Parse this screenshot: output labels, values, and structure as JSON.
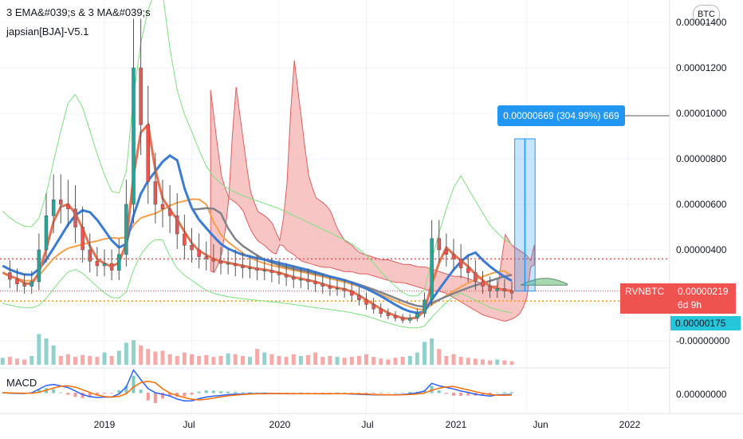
{
  "legend": {
    "line1": "3 EMA&#039;s & 3 MA&#039;s",
    "line2": "japsian[BJA]-V5.1",
    "macd": "MACD"
  },
  "currency_button": "BTC",
  "measure_label": "0.00000669 (304.99%) 669",
  "price_tag": {
    "symbol": "RVNBTC",
    "price": "0.00000219",
    "countdown": "6d 9h"
  },
  "level_tag": "0.00000175",
  "colors": {
    "candle_up": "#26a69a",
    "candle_down": "#ef5350",
    "ema_fast": "#e8714f",
    "ema_blue": "#3a7bd5",
    "ma_orange": "#f5a04a",
    "ma_gray": "#7f8289",
    "bollinger": "#7be27b",
    "cloud_red": "#f4a6a6",
    "cloud_green": "#9fd4a8",
    "measure": "#2196f3",
    "dotted_red": "#ef5350",
    "dotted_orange": "#ff9800"
  },
  "chart_data": {
    "type": "candlestick",
    "symbol": "RVNBTC",
    "y_axis_labels": [
      "0.00001400",
      "0.00001200",
      "0.00001000",
      "0.00000800",
      "0.00000600",
      "0.00000400",
      "0.00000200",
      "-0.00000000"
    ],
    "x_axis_labels": [
      "2019",
      "Jul",
      "2020",
      "Jul",
      "2021",
      "Jun",
      "2022"
    ],
    "x_axis_label_months": [
      24,
      30,
      36,
      42,
      48,
      53,
      60
    ],
    "ylim": [
      -2e-07,
      1.45e-05
    ],
    "xlim_months": [
      17,
      62
    ],
    "current_price": 2.19e-06,
    "dotted_levels": [
      {
        "value": 3.6e-06,
        "color": "red"
      },
      {
        "value": 1.75e-06,
        "color": "orange"
      }
    ],
    "measure": {
      "start_month": 52.2,
      "end_month": 53.6,
      "low": 2.19e-06,
      "high": 8.88e-06,
      "change": 6.69e-06,
      "percent": 304.99
    },
    "price_series": {
      "month": [
        17,
        17.5,
        18,
        18.5,
        19,
        19.5,
        20,
        20.5,
        21,
        21.5,
        22,
        22.5,
        23,
        23.5,
        24,
        24.5,
        25,
        25.5,
        26,
        26.5,
        27,
        27.5,
        28,
        28.5,
        29,
        29.5,
        30,
        30.5,
        31,
        31.5,
        32,
        32.5,
        33,
        33.5,
        34,
        34.5,
        35,
        35.5,
        36,
        36.5,
        37,
        37.5,
        38,
        38.5,
        39,
        39.5,
        40,
        40.5,
        41,
        41.5,
        42,
        42.5,
        43,
        43.5,
        44,
        44.5,
        45,
        45.5,
        46,
        46.5,
        47,
        47.5,
        48,
        48.5,
        49,
        49.5,
        50,
        50.5,
        51,
        51.5,
        52
      ],
      "close": [
        3e-06,
        2.7e-06,
        2.5e-06,
        2.4e-06,
        2.6e-06,
        4e-06,
        5.5e-06,
        6.2e-06,
        6e-06,
        5.8e-06,
        5e-06,
        4e-06,
        3.5e-06,
        3.3e-06,
        3.4e-06,
        3.1e-06,
        3.8e-06,
        6e-06,
        1.2e-05,
        9.5e-06,
        7e-06,
        6e-06,
        5.8e-06,
        5.5e-06,
        4.7e-06,
        4.2e-06,
        4e-06,
        3.7e-06,
        3.6e-06,
        3.5e-06,
        3.4e-06,
        3.4e-06,
        3.3e-06,
        3.2e-06,
        3.2e-06,
        3.1e-06,
        3.1e-06,
        3e-06,
        2.9e-06,
        2.8e-06,
        2.7e-06,
        2.7e-06,
        2.6e-06,
        2.5e-06,
        2.4e-06,
        2.3e-06,
        2.3e-06,
        2.2e-06,
        2e-06,
        1.8e-06,
        1.6e-06,
        1.4e-06,
        1.2e-06,
        1.1e-06,
        1e-06,
        9e-07,
        1e-06,
        1.2e-06,
        1.8e-06,
        4.5e-06,
        4e-06,
        3.8e-06,
        3.6e-06,
        3.2e-06,
        3e-06,
        2.6e-06,
        2.4e-06,
        2.2e-06,
        2.3e-06,
        2.2e-06,
        2.1e-06
      ]
    },
    "volume_scale": 100,
    "volume": [
      8,
      9,
      7,
      6,
      10,
      35,
      30,
      22,
      10,
      12,
      9,
      11,
      10,
      9,
      14,
      10,
      16,
      25,
      28,
      22,
      18,
      15,
      16,
      12,
      10,
      14,
      12,
      10,
      11,
      9,
      10,
      13,
      12,
      10,
      9,
      18,
      14,
      12,
      10,
      9,
      12,
      10,
      11,
      14,
      9,
      10,
      9,
      8,
      9,
      10,
      12,
      9,
      7,
      6,
      8,
      9,
      10,
      14,
      26,
      30,
      18,
      10,
      12,
      9,
      8,
      7,
      6,
      5,
      6,
      5,
      4
    ],
    "macd": {
      "y_label": "0.00000000"
    }
  }
}
